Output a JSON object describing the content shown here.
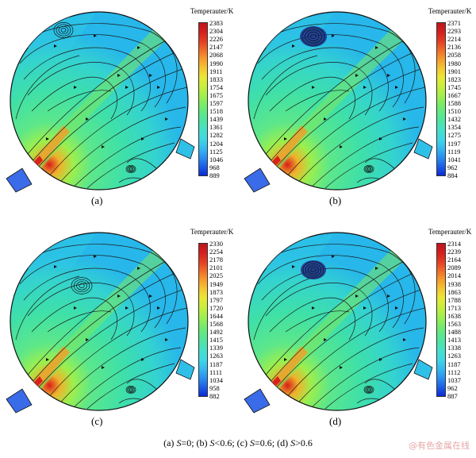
{
  "legend_title": "Temperauter/K",
  "colorscale": [
    "#0b2ad6",
    "#1c5ee6",
    "#2b8ff0",
    "#35b8f0",
    "#3fd6e6",
    "#45e0cc",
    "#4ee4a6",
    "#5ee886",
    "#7eec63",
    "#a6ef4a",
    "#cbee3c",
    "#ebe635",
    "#f5c431",
    "#f69a2c",
    "#f06a27",
    "#e43d22",
    "#d41f1e",
    "#c0141b"
  ],
  "panels": [
    {
      "id": "a",
      "label": "(a)",
      "ticks": [
        "2383",
        "2304",
        "2226",
        "2147",
        "2068",
        "1990",
        "1911",
        "1833",
        "1754",
        "1675",
        "1597",
        "1518",
        "1439",
        "1361",
        "1282",
        "1204",
        "1125",
        "1046",
        "968",
        "889"
      ]
    },
    {
      "id": "b",
      "label": "(b)",
      "ticks": [
        "2371",
        "2293",
        "2214",
        "2136",
        "2058",
        "1980",
        "1901",
        "1823",
        "1745",
        "1667",
        "1588",
        "1510",
        "1432",
        "1354",
        "1275",
        "1197",
        "1119",
        "1041",
        "962",
        "884"
      ]
    },
    {
      "id": "c",
      "label": "(c)",
      "ticks": [
        "2330",
        "2254",
        "2178",
        "2101",
        "2025",
        "1949",
        "1873",
        "1797",
        "1720",
        "1644",
        "1568",
        "1492",
        "1415",
        "1339",
        "1263",
        "1187",
        "1111",
        "1034",
        "958",
        "882"
      ]
    },
    {
      "id": "d",
      "label": "(d)",
      "ticks": [
        "2314",
        "2239",
        "2164",
        "2089",
        "2014",
        "1938",
        "1863",
        "1788",
        "1713",
        "1638",
        "1563",
        "1488",
        "1413",
        "1338",
        "1263",
        "1187",
        "1112",
        "1037",
        "962",
        "887"
      ]
    }
  ],
  "caption": {
    "a_pre": "(a) ",
    "a_var": "S",
    "a_post": "=0; ",
    "b_pre": "(b) ",
    "b_var": "S",
    "b_post": "<0.6; ",
    "c_pre": "(c) ",
    "c_var": "S",
    "c_post": "=0.6; ",
    "d_pre": "(d) ",
    "d_var": "S",
    "d_post": ">0.6"
  },
  "watermark": "@有色金属在线"
}
